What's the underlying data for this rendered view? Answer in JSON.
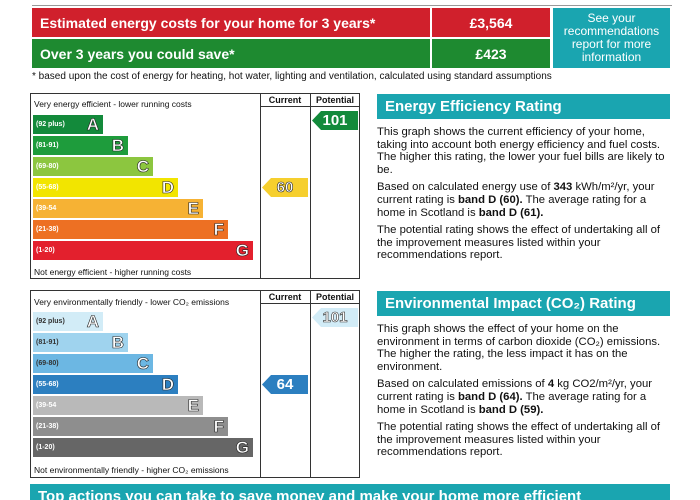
{
  "costs": {
    "energy_costs_label": "Estimated energy costs for your home for 3 years*",
    "energy_costs_value": "£3,564",
    "savings_label": "Over 3 years you could save*",
    "savings_value": "£423",
    "recommendations_link": "See your recommendations report for more information",
    "footnote": "* based upon the cost of energy for heating, hot water, lighting and ventilation, calculated using standard assumptions"
  },
  "energy_chart": {
    "top_caption": "Very energy efficient - lower running costs",
    "bottom_caption": "Not energy efficient - higher running costs",
    "current_header": "Current",
    "potential_header": "Potential",
    "current_value": "60",
    "potential_value": "101",
    "bands": [
      {
        "range": "(92 plus)",
        "letter": "A",
        "color": "#138a3b"
      },
      {
        "range": "(81-91)",
        "letter": "B",
        "color": "#1e9c3c"
      },
      {
        "range": "(69-80)",
        "letter": "C",
        "color": "#8cc63f"
      },
      {
        "range": "(55-68)",
        "letter": "D",
        "color": "#f2e500"
      },
      {
        "range": "(39-54",
        "letter": "E",
        "color": "#f6b234"
      },
      {
        "range": "(21-38)",
        "letter": "F",
        "color": "#ed7023"
      },
      {
        "range": "(1-20)",
        "letter": "G",
        "color": "#e3202d"
      }
    ],
    "current_color": "#f6cf2e",
    "potential_color": "#138a3b"
  },
  "environment_chart": {
    "top_caption": "Very environmentally friendly - lower CO₂ emissions",
    "bottom_caption": "Not environmentally friendly - higher CO₂ emissions",
    "current_header": "Current",
    "potential_header": "Potential",
    "current_value": "64",
    "potential_value": "101",
    "bands": [
      {
        "range": "(92 plus)",
        "letter": "A",
        "color": "#d2ecf7"
      },
      {
        "range": "(81-91)",
        "letter": "B",
        "color": "#9fd3ee"
      },
      {
        "range": "(69-80)",
        "letter": "C",
        "color": "#6cb7e3"
      },
      {
        "range": "(55-68)",
        "letter": "D",
        "color": "#2c7fc0"
      },
      {
        "range": "(39-54",
        "letter": "E",
        "color": "#b9b9b9"
      },
      {
        "range": "(21-38)",
        "letter": "F",
        "color": "#8e8e8e"
      },
      {
        "range": "(1-20)",
        "letter": "G",
        "color": "#666666"
      }
    ],
    "current_color": "#2c7fc0",
    "potential_color": "#d2ecf7"
  },
  "energy_panel": {
    "title": "Energy Efficiency Rating",
    "para1": "This graph shows the current efficiency of your home, taking into account both energy efficiency and fuel costs. The higher this rating, the lower your fuel bills are likely to be.",
    "para2_pre": "Based on calculated energy use of ",
    "para2_b1": "343",
    "para2_mid1": " kWh/m²/yr, your current rating is ",
    "para2_b2": "band D (60).",
    "para2_mid2": " The average rating for a home in Scotland is ",
    "para2_b3": "band D (61).",
    "para3": "The potential rating shows the effect of undertaking all of the improvement measures listed within your recommendations report."
  },
  "environment_panel": {
    "title": "Environmental Impact (CO₂) Rating",
    "para1": "This graph shows the effect of your home on the environment in terms of carbon dioxide (CO₂) emissions. The higher the rating, the less impact it has on the environment.",
    "para2_pre": "Based on calculated emissions of ",
    "para2_b1": "4",
    "para2_mid1": " kg CO2/m²/yr, your current rating is ",
    "para2_b2": "band D (64).",
    "para2_mid2": " The average rating for a home in Scotland is ",
    "para2_b3": "band D (59).",
    "para3": "The potential rating shows the effect of undertaking all of the improvement measures listed within your recommendations report."
  },
  "bottom_banner": "Top actions you can take to save money and make your home more efficient"
}
